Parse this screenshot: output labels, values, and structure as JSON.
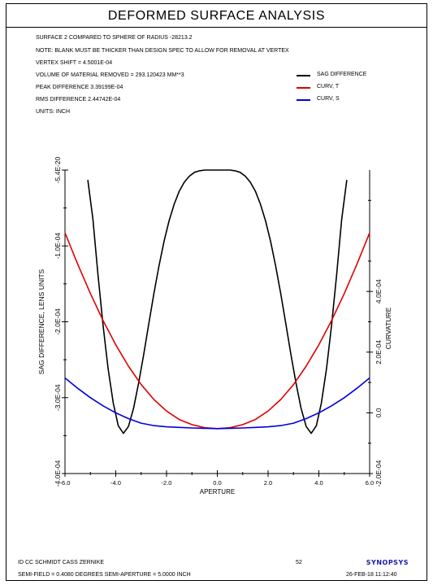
{
  "title": "DEFORMED SURFACE ANALYSIS",
  "info_lines": [
    "SURFACE   2 COMPARED TO SPHERE OF RADIUS   -28213.2",
    "NOTE: BLANK MUST BE THICKER THAN DESIGN SPEC TO ALLOW FOR REMOVAL AT VERTEX",
    "VERTEX SHIFT =  4.5001E-04",
    "VOLUME OF MATERIAL REMOVED =  293.120423 MM**3",
    "PEAK DIFFERENCE  3.39199E-04",
    "RMS DIFFERENCE   2.44742E-04",
    "UNITS: INCH"
  ],
  "legend": [
    {
      "label": "SAG DIFFERENCE",
      "color": "#000000"
    },
    {
      "label": "CURV, T",
      "color": "#e00000"
    },
    {
      "label": "CURV, S",
      "color": "#0000e0"
    }
  ],
  "chart_data": {
    "type": "line",
    "title": "DEFORMED SURFACE ANALYSIS",
    "xlabel": "APERTURE",
    "ylabel_left": "SAG DIFFERENCE, LENS UNITS",
    "ylabel_right": "CURVATURE",
    "xlim": [
      -6.0,
      6.0
    ],
    "ylim_left": [
      -0.0004,
      -5.4e-20
    ],
    "ylim_right": [
      -0.0002,
      0.0008
    ],
    "x_ticks": [
      "-6.0",
      "-4.0",
      "-2.0",
      "0.0",
      "2.0",
      "4.0",
      "6.0"
    ],
    "y_left_ticks": [
      "-5.4E-20",
      "-1.0E-04",
      "-2.0E-04",
      "-3.0E-04",
      "-4.0E-04"
    ],
    "y_right_ticks": [
      "4.0E-04",
      "2.0E-04",
      "0.0",
      "-2.0E-04"
    ],
    "series": [
      {
        "name": "SAG DIFFERENCE",
        "axis": "left",
        "color": "#000000",
        "x": [
          -5.1,
          -4.9,
          -4.7,
          -4.5,
          -4.3,
          -4.1,
          -3.9,
          -3.7,
          -3.5,
          -3.3,
          -3.1,
          -2.9,
          -2.7,
          -2.5,
          -2.3,
          -2.1,
          -1.9,
          -1.7,
          -1.5,
          -1.3,
          -1.1,
          -0.9,
          -0.7,
          -0.5,
          -0.3,
          -0.1,
          0.1,
          0.3,
          0.5,
          0.7,
          0.9,
          1.1,
          1.3,
          1.5,
          1.7,
          1.9,
          2.1,
          2.3,
          2.5,
          2.7,
          2.9,
          3.1,
          3.3,
          3.5,
          3.7,
          3.9,
          4.1,
          4.3,
          4.5,
          4.7,
          4.9,
          5.1
        ],
        "values": [
          -1.3e-05,
          -6.5e-05,
          -0.000138,
          -0.000205,
          -0.000262,
          -0.000307,
          -0.000337,
          -0.000347,
          -0.000338,
          -0.000314,
          -0.000281,
          -0.000243,
          -0.000203,
          -0.000163,
          -0.000127,
          -9.4e-05,
          -6.7e-05,
          -4.5e-05,
          -2.8e-05,
          -1.6e-05,
          -8e-06,
          -3e-06,
          -1e-06,
          0.0,
          0.0,
          0.0,
          0.0,
          0.0,
          0.0,
          -1e-06,
          -3e-06,
          -8e-06,
          -1.6e-05,
          -2.8e-05,
          -4.5e-05,
          -6.7e-05,
          -9.4e-05,
          -0.000127,
          -0.000163,
          -0.000203,
          -0.000243,
          -0.000281,
          -0.000314,
          -0.000338,
          -0.000347,
          -0.000337,
          -0.000307,
          -0.000262,
          -0.000205,
          -0.000138,
          -6.5e-05,
          -1.3e-05
        ]
      },
      {
        "name": "CURV, T",
        "axis": "right",
        "color": "#e00000",
        "x": [
          -6.0,
          -5.5,
          -5.0,
          -4.5,
          -4.0,
          -3.5,
          -3.0,
          -2.5,
          -2.0,
          -1.5,
          -1.0,
          -0.5,
          0.0,
          0.5,
          1.0,
          1.5,
          2.0,
          2.5,
          3.0,
          3.5,
          4.0,
          4.5,
          5.0,
          5.5,
          6.0
        ],
        "values": [
          0.000593,
          0.00049,
          0.000393,
          0.000304,
          0.000224,
          0.000154,
          9.3e-05,
          4.4e-05,
          6e-06,
          -2.2e-05,
          -3.9e-05,
          -4.9e-05,
          -5.2e-05,
          -4.9e-05,
          -3.9e-05,
          -2.2e-05,
          6e-06,
          4.4e-05,
          9.3e-05,
          0.000154,
          0.000224,
          0.000304,
          0.000393,
          0.00049,
          0.000593
        ]
      },
      {
        "name": "CURV, S",
        "axis": "right",
        "color": "#0000e0",
        "x": [
          -6.0,
          -5.5,
          -5.0,
          -4.5,
          -4.0,
          -3.5,
          -3.0,
          -2.5,
          -2.0,
          -1.5,
          -1.0,
          -0.5,
          0.0,
          0.5,
          1.0,
          1.5,
          2.0,
          2.5,
          3.0,
          3.5,
          4.0,
          4.5,
          5.0,
          5.5,
          6.0
        ],
        "values": [
          0.000115,
          8.1e-05,
          5e-05,
          2.3e-05,
          0.0,
          -1.9e-05,
          -3.4e-05,
          -4.2e-05,
          -4.6e-05,
          -4.8e-05,
          -5e-05,
          -5.1e-05,
          -5.2e-05,
          -5.1e-05,
          -5e-05,
          -4.8e-05,
          -4.6e-05,
          -4.2e-05,
          -3.4e-05,
          -1.9e-05,
          0.0,
          2.3e-05,
          5e-05,
          8.1e-05,
          0.000115
        ]
      }
    ]
  },
  "footer": {
    "design_name": "ID CC SCHMIDT CASS ZERNIKE",
    "page_number": "52",
    "logo": "SYNOPSYS",
    "field_info": "SEMI-FIELD =   0.4080 DEGREES   SEMI-APERTURE =  5.0000 INCH",
    "timestamp": "26-FEB-18  11:12:40"
  }
}
